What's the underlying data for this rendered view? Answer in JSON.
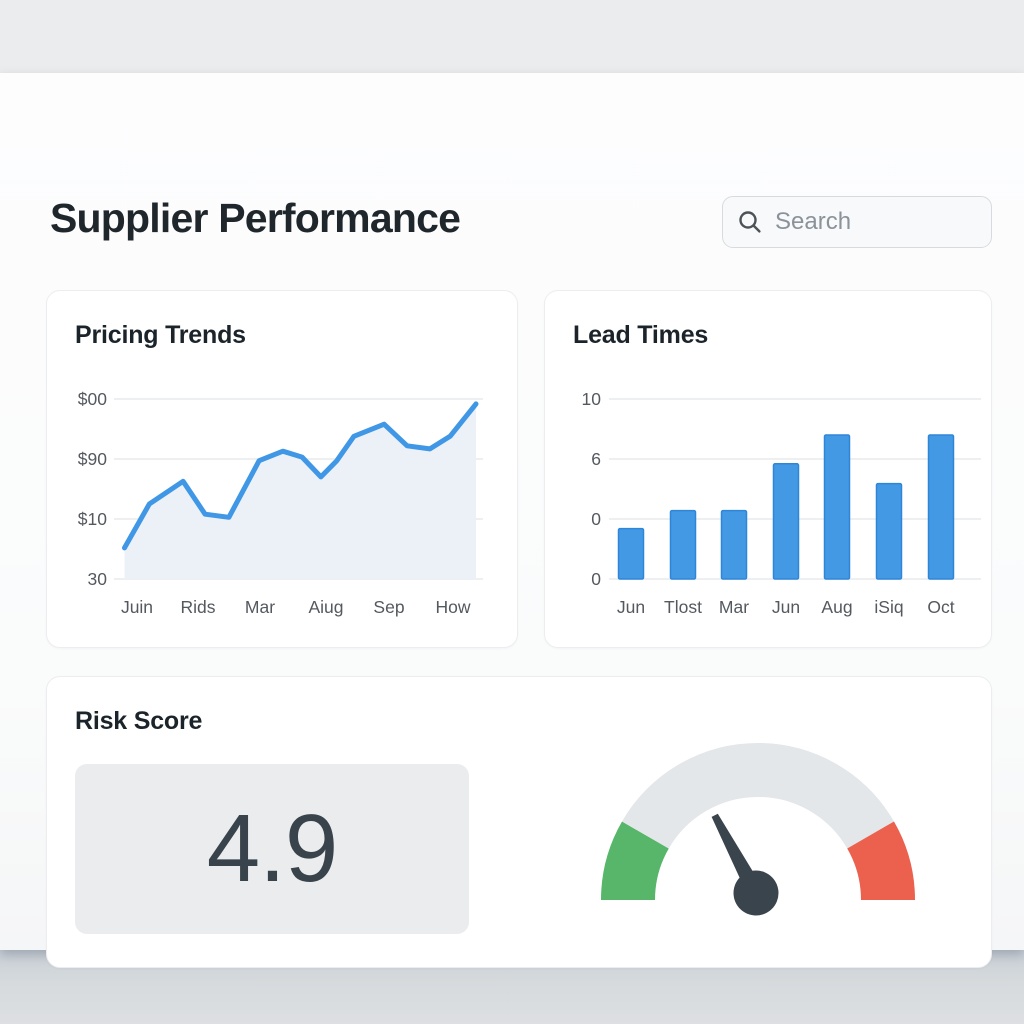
{
  "header": {
    "title": "Supplier Performance",
    "search_placeholder": "Search",
    "search_icon": "magnifier-icon"
  },
  "cards": {
    "pricing": {
      "title": "Pricing Trends"
    },
    "lead": {
      "title": "Lead Times"
    },
    "risk": {
      "title": "Risk Score",
      "score": "4.9"
    }
  },
  "chart_data": [
    {
      "type": "line",
      "title": "Pricing Trends",
      "x_labels": [
        "Juin",
        "Rids",
        "Mar",
        "Aiug",
        "Sep",
        "How"
      ],
      "y_tick_labels_top_to_bottom": [
        "$00",
        "$90",
        "$10",
        "30"
      ],
      "grid": true,
      "legend": false,
      "points_x_fraction_y_fraction": [
        [
          0.01,
          0.173
        ],
        [
          0.08,
          0.417
        ],
        [
          0.175,
          0.543
        ],
        [
          0.237,
          0.36
        ],
        [
          0.304,
          0.343
        ],
        [
          0.389,
          0.657
        ],
        [
          0.456,
          0.71
        ],
        [
          0.51,
          0.677
        ],
        [
          0.563,
          0.567
        ],
        [
          0.608,
          0.657
        ],
        [
          0.656,
          0.793
        ],
        [
          0.741,
          0.86
        ],
        [
          0.806,
          0.74
        ],
        [
          0.87,
          0.723
        ],
        [
          0.927,
          0.793
        ],
        [
          1.0,
          0.973
        ]
      ],
      "note": "y_fraction: 0 = bottom axis line, 1 = top gridline"
    },
    {
      "type": "bar",
      "title": "Lead Times",
      "categories": [
        "Jun",
        "Tlost",
        "Mar",
        "Jun",
        "Aug",
        "iSiq",
        "Oct"
      ],
      "values": [
        2.8,
        3.8,
        3.8,
        6.4,
        8.0,
        5.3,
        8.0
      ],
      "y_tick_labels_top_to_bottom": [
        "10",
        "6",
        "0",
        "0"
      ],
      "ylim": [
        0,
        10
      ],
      "grid": true,
      "legend": false
    },
    {
      "type": "gauge",
      "title": "Risk Score",
      "value_label": "4.9",
      "needle_deg": 118,
      "segments": [
        {
          "name": "low",
          "from_deg": 180,
          "to_deg": 150,
          "color": "#57b669"
        },
        {
          "name": "mid",
          "from_deg": 150,
          "to_deg": 30,
          "color": "#e3e7e9"
        },
        {
          "name": "high",
          "from_deg": 30,
          "to_deg": 0,
          "color": "#ec604e"
        }
      ]
    }
  ],
  "colors": {
    "line_blue": "#3f97e5",
    "area_fill": "#ecf1f8",
    "bar_fill": "#4499e4",
    "bar_border": "#2e86d8",
    "grid": "#e8eaec",
    "axis_text": "#54595f",
    "gauge_green": "#57b669",
    "gauge_gray": "#e3e7e9",
    "gauge_red": "#ec604e",
    "needle": "#3a444c",
    "title_text": "#1f262c",
    "score_text": "#39434b"
  }
}
